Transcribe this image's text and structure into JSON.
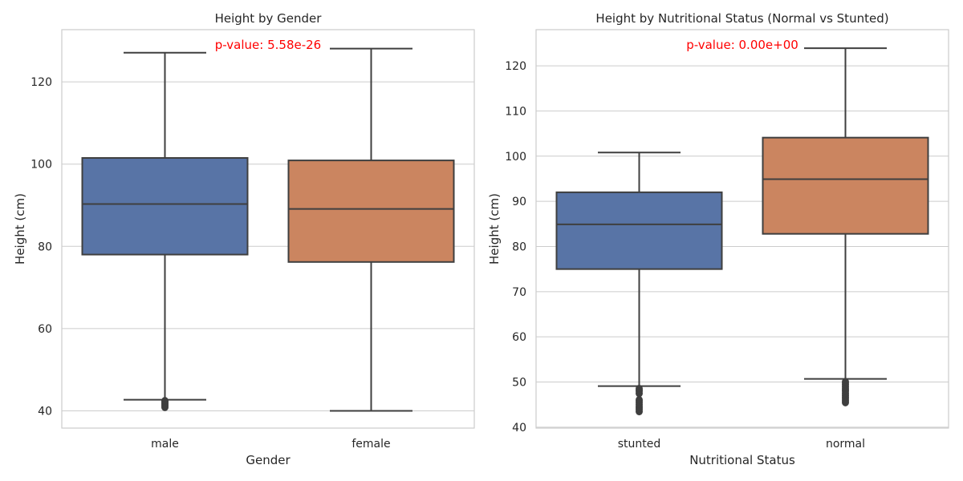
{
  "colors": {
    "blue": "#5874a6",
    "orange": "#cb8560",
    "line": "#3f3f3f",
    "grid": "#cccccc",
    "frame": "#cccccc",
    "annotation": "#ff0000"
  },
  "chart_data": [
    {
      "type": "box",
      "title": "Height by Gender",
      "xlabel": "Gender",
      "ylabel": "Height (cm)",
      "ylim": [
        35.8,
        132.7
      ],
      "yticks": [
        40,
        60,
        80,
        100,
        120
      ],
      "grid": true,
      "annotation": "p-value: 5.58e-26",
      "categories": [
        "male",
        "female"
      ],
      "boxes": [
        {
          "category": "male",
          "whisker_low": 42.7,
          "q1": 78.0,
          "median": 90.3,
          "q3": 101.5,
          "whisker_high": 127.1,
          "outliers": [
            40.9,
            41.3,
            41.7,
            42.1,
            42.4
          ]
        },
        {
          "category": "female",
          "whisker_low": 40.0,
          "q1": 76.2,
          "median": 89.1,
          "q3": 100.9,
          "whisker_high": 128.1,
          "outliers": []
        }
      ]
    },
    {
      "type": "box",
      "title": "Height by Nutritional Status (Normal vs Stunted)",
      "xlabel": "Nutritional Status",
      "ylabel": "Height (cm)",
      "ylim": [
        39.8,
        128.0
      ],
      "yticks": [
        40,
        50,
        60,
        70,
        80,
        90,
        100,
        110,
        120
      ],
      "grid": true,
      "annotation": "p-value: 0.00e+00",
      "categories": [
        "stunted",
        "normal"
      ],
      "boxes": [
        {
          "category": "stunted",
          "whisker_low": 49.1,
          "q1": 75.0,
          "median": 84.9,
          "q3": 92.0,
          "whisker_high": 100.8,
          "outliers": [
            43.5,
            44.0,
            44.5,
            45.0,
            45.5,
            46.0,
            47.5,
            48.0,
            48.5
          ]
        },
        {
          "category": "normal",
          "whisker_low": 50.7,
          "q1": 82.8,
          "median": 94.9,
          "q3": 104.1,
          "whisker_high": 123.9,
          "outliers": [
            45.5,
            46.0,
            46.5,
            47.0,
            47.5,
            48.0,
            48.5,
            49.0,
            49.5,
            50.0
          ]
        }
      ]
    }
  ]
}
